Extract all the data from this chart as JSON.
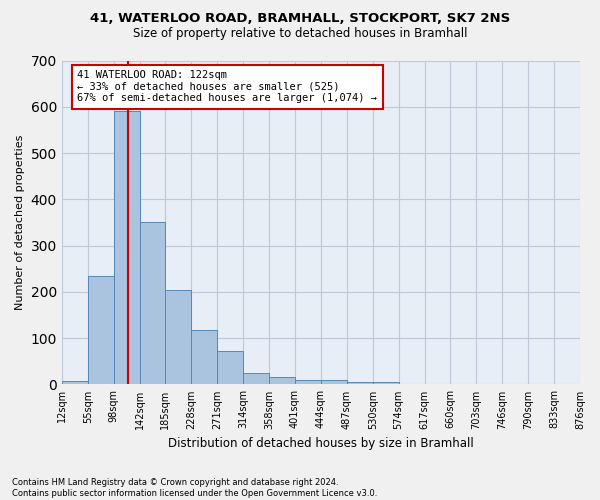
{
  "title_line1": "41, WATERLOO ROAD, BRAMHALL, STOCKPORT, SK7 2NS",
  "title_line2": "Size of property relative to detached houses in Bramhall",
  "xlabel": "Distribution of detached houses by size in Bramhall",
  "ylabel": "Number of detached properties",
  "footnote": "Contains HM Land Registry data © Crown copyright and database right 2024.\nContains public sector information licensed under the Open Government Licence v3.0.",
  "bin_labels": [
    "12sqm",
    "55sqm",
    "98sqm",
    "142sqm",
    "185sqm",
    "228sqm",
    "271sqm",
    "314sqm",
    "358sqm",
    "401sqm",
    "444sqm",
    "487sqm",
    "530sqm",
    "574sqm",
    "617sqm",
    "660sqm",
    "703sqm",
    "746sqm",
    "790sqm",
    "833sqm",
    "876sqm"
  ],
  "bar_values": [
    8,
    235,
    590,
    350,
    204,
    118,
    73,
    25,
    15,
    10,
    10,
    5,
    5,
    0,
    0,
    0,
    0,
    0,
    0,
    0
  ],
  "bar_color": "#aac4e0",
  "bar_edge_color": "#5588bb",
  "annotation_line1": "41 WATERLOO ROAD: 122sqm",
  "annotation_line2": "← 33% of detached houses are smaller (525)",
  "annotation_line3": "67% of semi-detached houses are larger (1,074) →",
  "vline_color": "#cc0000",
  "ylim": [
    0,
    700
  ],
  "yticks": [
    0,
    100,
    200,
    300,
    400,
    500,
    600,
    700
  ],
  "bg_color": "#e8eef5",
  "annotation_box_color": "#ffffff",
  "annotation_box_edge": "#cc0000",
  "grid_color": "#c0c8d8",
  "fig_bg_color": "#f0f0f0"
}
